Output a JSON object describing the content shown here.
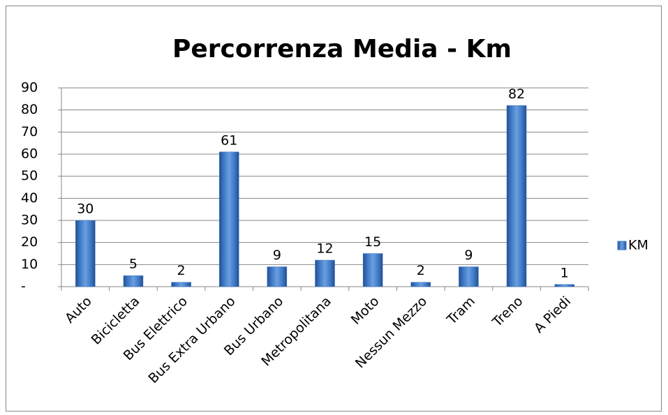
{
  "chart_data": {
    "type": "bar",
    "title": "Percorrenza Media - Km",
    "categories": [
      "Auto",
      "Bicicletta",
      "Bus Elettrico",
      "Bus Extra Urbano",
      "Bus Urbano",
      "Metropolitana",
      "Moto",
      "Nessun Mezzo",
      "Tram",
      "Treno",
      "A Piedi"
    ],
    "series": [
      {
        "name": "KM",
        "color": "#3b74c2",
        "values": [
          30,
          5,
          2,
          61,
          9,
          12,
          15,
          2,
          9,
          82,
          1
        ]
      }
    ],
    "ylim": [
      0,
      90
    ],
    "yticks": [
      {
        "value": 0,
        "label": "-"
      },
      10,
      20,
      30,
      40,
      50,
      60,
      70,
      80,
      90
    ],
    "grid": true,
    "legend": "right"
  }
}
